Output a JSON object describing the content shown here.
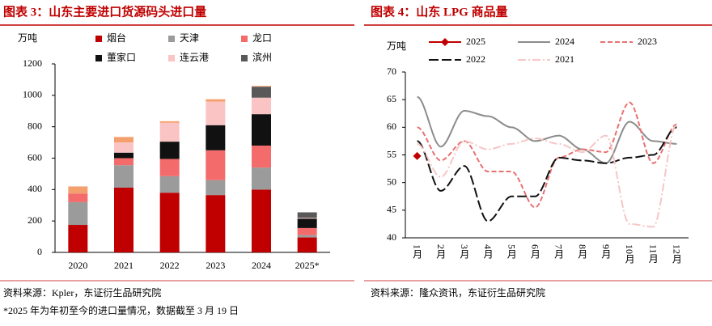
{
  "chart_data": [
    {
      "type": "bar",
      "stacked": true,
      "title": "图表 3：山东主要进口货源码头进口量",
      "y_label": "万吨",
      "categories": [
        "2020",
        "2021",
        "2022",
        "2023",
        "2024",
        "2025*"
      ],
      "ylim": [
        0,
        1200
      ],
      "yticks": [
        0,
        200,
        400,
        600,
        800,
        1000,
        1200
      ],
      "series": [
        {
          "name": "烟台",
          "color": "#c00000",
          "values": [
            175,
            412,
            380,
            365,
            400,
            95
          ]
        },
        {
          "name": "天津",
          "color": "#9b9b9b",
          "values": [
            145,
            143,
            105,
            95,
            140,
            15
          ]
        },
        {
          "name": "龙口",
          "color": "#f46b6b",
          "values": [
            55,
            45,
            110,
            190,
            140,
            45
          ]
        },
        {
          "name": "董家口",
          "color": "#111111",
          "values": [
            0,
            35,
            110,
            160,
            200,
            60
          ]
        },
        {
          "name": "连云港",
          "color": "#fac4c4",
          "values": [
            0,
            65,
            120,
            150,
            105,
            5
          ]
        },
        {
          "name": "滨州",
          "color": "#595959",
          "values": [
            0,
            0,
            0,
            0,
            70,
            35
          ]
        },
        {
          "color": "#f4a06e",
          "values": [
            45,
            35,
            10,
            15,
            5,
            0
          ]
        }
      ]
    },
    {
      "type": "line",
      "title": "图表 4：山东 LPG 商品量",
      "y_label": "万吨",
      "categories": [
        "1月",
        "2月",
        "3月",
        "4月",
        "5月",
        "6月",
        "7月",
        "8月",
        "9月",
        "10月",
        "11月",
        "12月"
      ],
      "ylim": [
        40,
        70
      ],
      "yticks": [
        40,
        45,
        50,
        55,
        60,
        65,
        70
      ],
      "series": [
        {
          "name": "2025",
          "color": "#c00000",
          "dash": "solid",
          "marker": "diamond",
          "values": [
            54.8,
            null,
            null,
            null,
            null,
            null,
            null,
            null,
            null,
            null,
            null,
            null
          ]
        },
        {
          "name": "2024",
          "color": "#8c8c8c",
          "dash": "solid",
          "values": [
            65.5,
            56.5,
            63,
            62,
            60,
            57.5,
            58.5,
            56,
            53.5,
            61,
            57.5,
            57
          ]
        },
        {
          "name": "2023",
          "color": "#e97070",
          "dash": "dashed",
          "values": [
            60,
            54,
            57.5,
            52,
            52,
            45.5,
            54.5,
            56,
            55.5,
            64.5,
            53.5,
            60.5
          ]
        },
        {
          "name": "2022",
          "color": "#111111",
          "dash": "longdash",
          "values": [
            57.5,
            48.5,
            53,
            43,
            47.5,
            47.5,
            54.5,
            54,
            53.5,
            54.5,
            55,
            60
          ]
        },
        {
          "name": "2021",
          "color": "#f7c6c6",
          "dash": "dashdot",
          "values": [
            57,
            51,
            57.5,
            56,
            57,
            58,
            57,
            55.5,
            58.5,
            42.5,
            42,
            60.5
          ]
        }
      ]
    }
  ],
  "notes": {
    "left_source": "资料来源：Kpler，东证衍生品研究院",
    "left_footnote": "*2025 年为年初至今的进口量情况，数据截至 3 月 19 日",
    "right_source": "资料来源：隆众资讯，东证衍生品研究院"
  }
}
